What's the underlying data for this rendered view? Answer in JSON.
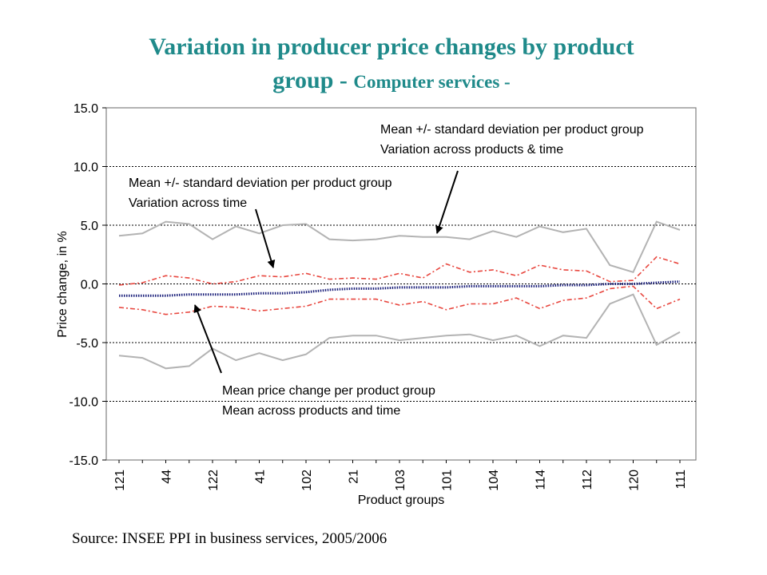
{
  "title": {
    "main": "Variation in producer price changes by product",
    "line2": "group - ",
    "sub": "Computer services -"
  },
  "source": "Source: INSEE PPI in business services, 2005/2006",
  "chart_data": {
    "type": "line",
    "xlabel": "Product groups",
    "ylabel": "Price change, in %",
    "ylim": [
      -15,
      15
    ],
    "yticks": [
      "15.0",
      "10.0",
      "5.0",
      "0.0",
      "-5.0",
      "-10.0",
      "-15.0"
    ],
    "grid": "horizontal dashed",
    "x_tick_labels": [
      "121",
      "44",
      "122",
      "41",
      "102",
      "21",
      "103",
      "101",
      "104",
      "114",
      "112",
      "120",
      "111"
    ],
    "n_points": 25,
    "series": [
      {
        "role": "upper_outer",
        "color": "#b3b3b3",
        "style": "solid",
        "values": [
          4.1,
          4.3,
          5.3,
          5.1,
          3.8,
          4.9,
          4.3,
          5.0,
          5.1,
          3.8,
          3.7,
          3.8,
          4.1,
          4.0,
          4.0,
          3.8,
          4.5,
          4.0,
          4.9,
          4.4,
          4.7,
          1.6,
          1.0,
          5.3,
          4.6
        ]
      },
      {
        "role": "lower_outer",
        "color": "#b3b3b3",
        "style": "solid",
        "values": [
          -6.1,
          -6.3,
          -7.2,
          -7.0,
          -5.5,
          -6.5,
          -5.9,
          -6.5,
          -6.0,
          -4.6,
          -4.4,
          -4.4,
          -4.8,
          -4.6,
          -4.4,
          -4.3,
          -4.8,
          -4.4,
          -5.3,
          -4.4,
          -4.6,
          -1.7,
          -0.9,
          -5.2,
          -4.1
        ]
      },
      {
        "role": "upper_inner",
        "color": "#e8473f",
        "style": "dashdot",
        "values": [
          -0.1,
          0.1,
          0.7,
          0.5,
          0.0,
          0.2,
          0.7,
          0.6,
          0.9,
          0.4,
          0.5,
          0.4,
          0.9,
          0.5,
          1.7,
          1.0,
          1.2,
          0.7,
          1.6,
          1.2,
          1.1,
          0.2,
          0.3,
          2.3,
          1.7
        ]
      },
      {
        "role": "lower_inner",
        "color": "#e8473f",
        "style": "dashdot",
        "values": [
          -2.0,
          -2.2,
          -2.6,
          -2.4,
          -1.9,
          -2.0,
          -2.3,
          -2.1,
          -1.9,
          -1.3,
          -1.3,
          -1.3,
          -1.8,
          -1.5,
          -2.2,
          -1.7,
          -1.7,
          -1.2,
          -2.1,
          -1.4,
          -1.2,
          -0.4,
          -0.2,
          -2.1,
          -1.3
        ]
      },
      {
        "role": "mean",
        "color": "#1a1f7a",
        "style": "dotted",
        "values": [
          -1.0,
          -1.0,
          -1.0,
          -0.9,
          -0.9,
          -0.9,
          -0.8,
          -0.8,
          -0.7,
          -0.5,
          -0.4,
          -0.4,
          -0.3,
          -0.3,
          -0.3,
          -0.2,
          -0.2,
          -0.2,
          -0.2,
          -0.1,
          -0.1,
          0.0,
          0.0,
          0.1,
          0.2
        ]
      }
    ],
    "annotations": [
      {
        "line1": "Mean +/- standard deviation per product group",
        "line2": "Variation across products & time"
      },
      {
        "line1": "Mean +/- standard deviation per product group",
        "line2": "Variation across time"
      },
      {
        "line1": "Mean price change per product group",
        "line2": "Mean across products and time"
      }
    ]
  }
}
